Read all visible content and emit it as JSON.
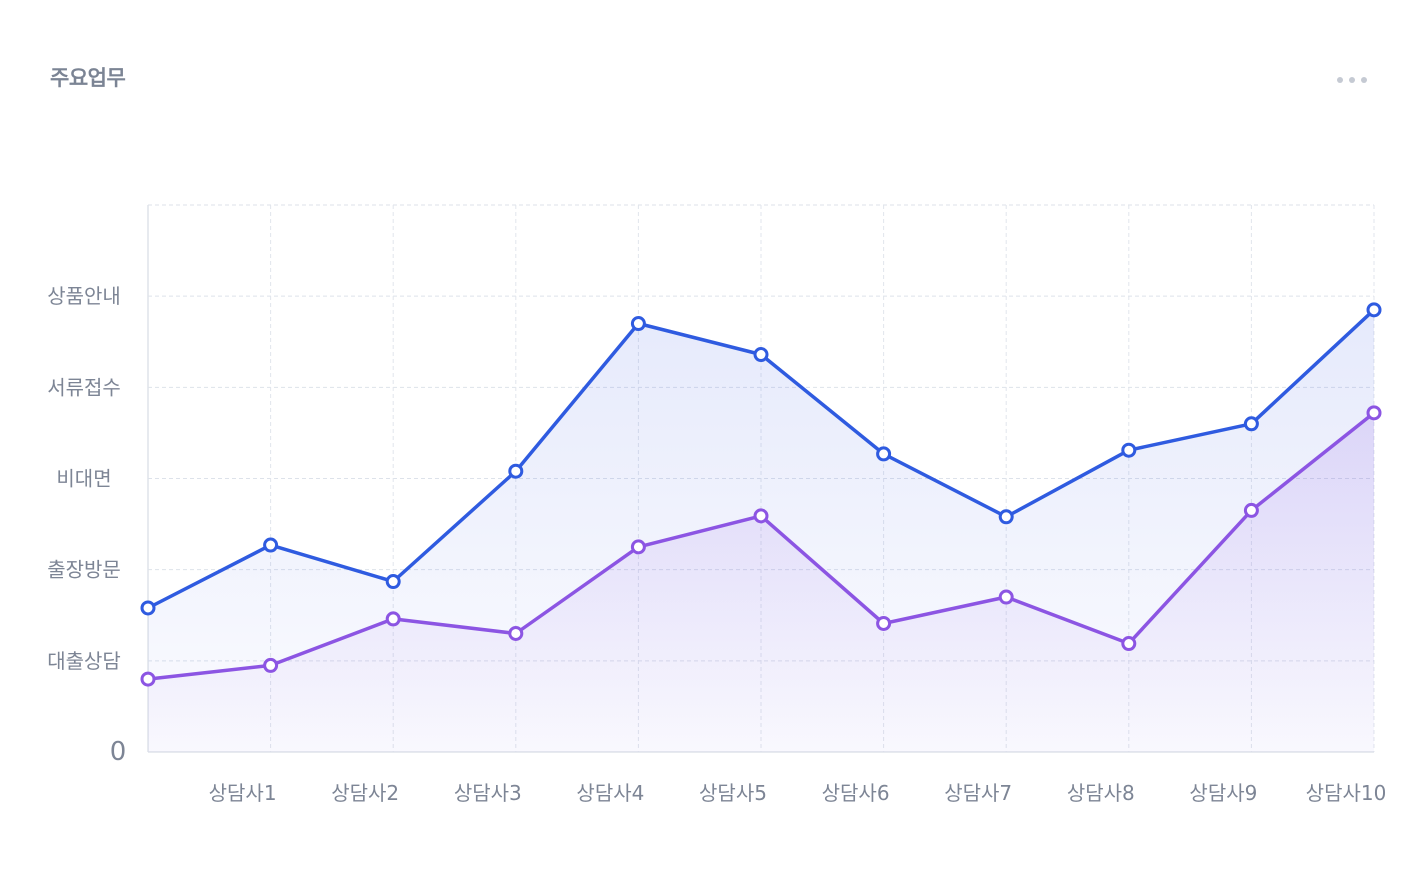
{
  "card": {
    "title": "주요업무",
    "menu_icon": "more-horizontal-icon"
  },
  "chart_data": {
    "type": "area",
    "categories": [
      "상담사1",
      "상담사2",
      "상담사3",
      "상담사4",
      "상담사5",
      "상담사6",
      "상담사7",
      "상담사8",
      "상담사9",
      "상담사10"
    ],
    "y_categories": [
      "0",
      "대출상담",
      "출장방문",
      "비대면",
      "서류접수",
      "상품안내"
    ],
    "ylim": [
      0,
      6
    ],
    "grid": true,
    "series": [
      {
        "color": "#2f5be0",
        "x": [
          0,
          1,
          2,
          3,
          4,
          5,
          6,
          7,
          8,
          9,
          10
        ],
        "values": [
          1.58,
          2.27,
          1.87,
          3.08,
          4.7,
          4.36,
          3.27,
          2.58,
          3.31,
          3.6,
          4.85
        ]
      },
      {
        "color": "#8c55e3",
        "x": [
          0,
          1,
          2,
          3,
          4,
          5,
          6,
          7,
          8,
          9,
          10
        ],
        "values": [
          0.8,
          0.95,
          1.46,
          1.3,
          2.25,
          2.59,
          1.41,
          1.7,
          1.19,
          2.65,
          3.72
        ]
      }
    ]
  }
}
